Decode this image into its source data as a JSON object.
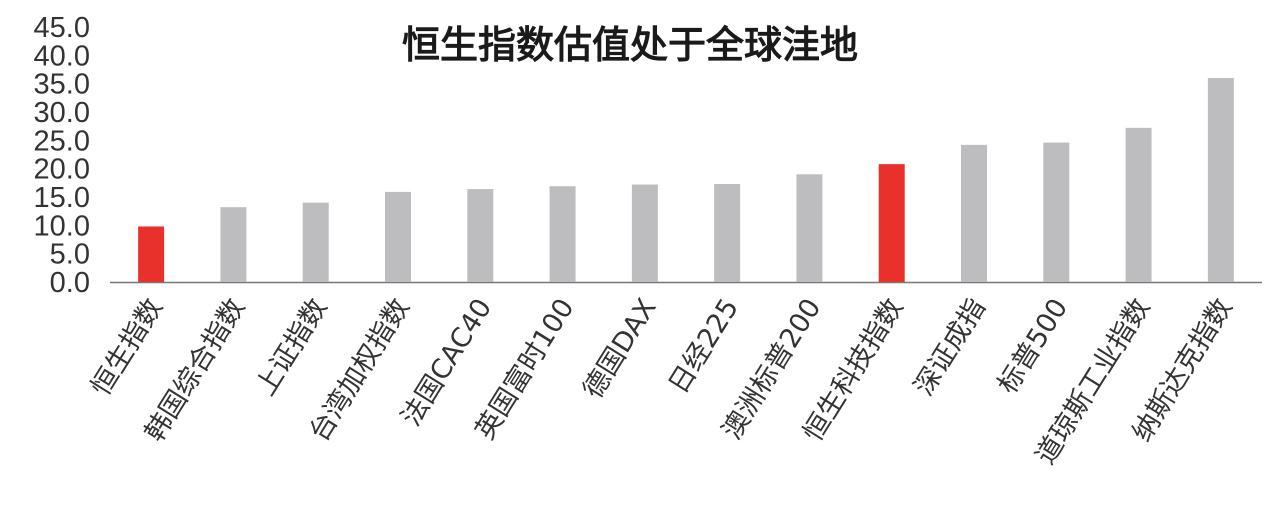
{
  "chart_data": {
    "type": "bar",
    "title": "恒生指数估值处于全球洼地",
    "xlabel": "",
    "ylabel": "",
    "ylim": [
      0,
      45
    ],
    "y_ticks": [
      "0.0",
      "5.0",
      "10.0",
      "15.0",
      "20.0",
      "25.0",
      "30.0",
      "35.0",
      "40.0",
      "45.0"
    ],
    "categories": [
      "恒生指数",
      "韩国综合指数",
      "上证指数",
      "台湾加权指数",
      "法国CAC40",
      "英国富时100",
      "德国DAX",
      "日经225",
      "澳洲标普200",
      "恒生科技指数",
      "深证成指",
      "标普500",
      "道琼斯工业指数",
      "纳斯达克指数"
    ],
    "values": [
      9.8,
      13.2,
      14.0,
      15.9,
      16.4,
      16.9,
      17.2,
      17.3,
      19.0,
      20.8,
      24.2,
      24.6,
      27.2,
      36.0
    ],
    "highlight": [
      "恒生指数",
      "恒生科技指数"
    ],
    "colors": {
      "bar": "#bdbdbf",
      "highlight": "#e8312a",
      "axis": "#777777"
    },
    "grid": false,
    "legend": "none"
  }
}
